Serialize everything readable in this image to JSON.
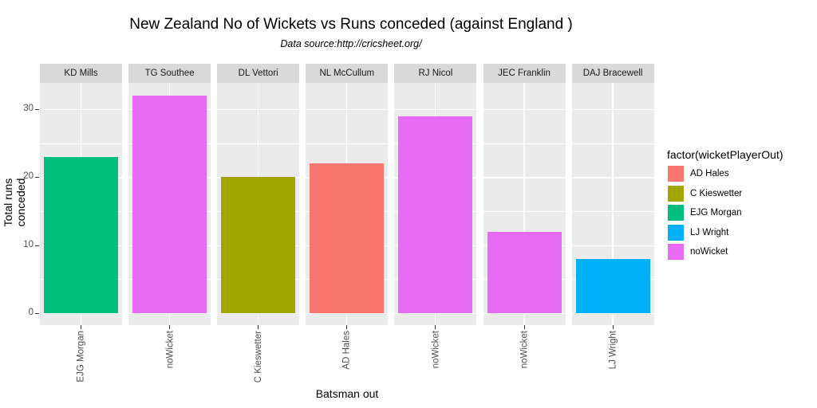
{
  "chart": {
    "title": "New Zealand No of Wickets vs Runs conceded (against England )",
    "subtitle": "Data source:http://cricsheet.org/",
    "xlabel": "Batsman out",
    "ylabel": "Total runs conceded",
    "yticks": [
      "0",
      "10",
      "20",
      "30"
    ],
    "legend_title": "factor(wicketPlayerOut)"
  },
  "legend": [
    {
      "label": "AD Hales",
      "color": "#F8766D"
    },
    {
      "label": "C Kieswetter",
      "color": "#A3A500"
    },
    {
      "label": "EJG Morgan",
      "color": "#00BF7D"
    },
    {
      "label": "LJ Wright",
      "color": "#00B0F6"
    },
    {
      "label": "noWicket",
      "color": "#E76BF3"
    }
  ],
  "chart_data": {
    "type": "bar",
    "title": "New Zealand No of Wickets vs Runs conceded (against England )",
    "subtitle": "Data source:http://cricsheet.org/",
    "xlabel": "Batsman out",
    "ylabel": "Total runs conceded",
    "ylim": [
      0,
      33.6
    ],
    "yticks": [
      0,
      10,
      20,
      30
    ],
    "grid": true,
    "legend_position": "right",
    "facet_by": "bowler",
    "facets": [
      {
        "bowler": "KD Mills",
        "batsman_out": "EJG Morgan",
        "runs": 23
      },
      {
        "bowler": "TG Southee",
        "batsman_out": "noWicket",
        "runs": 32
      },
      {
        "bowler": "DL Vettori",
        "batsman_out": "C Kieswetter",
        "runs": 20
      },
      {
        "bowler": "NL McCullum",
        "batsman_out": "AD Hales",
        "runs": 22
      },
      {
        "bowler": "RJ Nicol",
        "batsman_out": "noWicket",
        "runs": 29
      },
      {
        "bowler": "JEC Franklin",
        "batsman_out": "noWicket",
        "runs": 12
      },
      {
        "bowler": "DAJ Bracewell",
        "batsman_out": "LJ Wright",
        "runs": 8
      }
    ],
    "legend": {
      "title": "factor(wicketPlayerOut)",
      "entries": [
        "AD Hales",
        "C Kieswetter",
        "EJG Morgan",
        "LJ Wright",
        "noWicket"
      ]
    }
  }
}
